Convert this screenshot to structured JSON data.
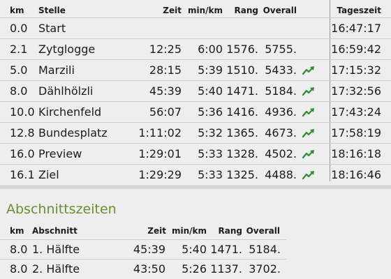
{
  "splits": {
    "headers": {
      "km": "km",
      "stelle": "Stelle",
      "zeit": "Zeit",
      "pace": "min/km",
      "rang": "Rang",
      "overall": "Overall",
      "tageszeit": "Tageszeit"
    },
    "rows": [
      {
        "km": "0.0",
        "name": "Start",
        "zeit": "",
        "pace": "",
        "rang": "",
        "overall": "",
        "trend": "",
        "tageszeit": "16:47:17"
      },
      {
        "km": "2.1",
        "name": "Zytglogge",
        "zeit": "12:25",
        "pace": "6:00",
        "rang": "1576.",
        "overall": "5755.",
        "trend": "",
        "tageszeit": "16:59:42"
      },
      {
        "km": "5.0",
        "name": "Marzili",
        "zeit": "28:15",
        "pace": "5:39",
        "rang": "1510.",
        "overall": "5433.",
        "trend": "trend-up-icon",
        "tageszeit": "17:15:32"
      },
      {
        "km": "8.0",
        "name": "Dählhölzli",
        "zeit": "45:39",
        "pace": "5:40",
        "rang": "1471.",
        "overall": "5184.",
        "trend": "trend-up-icon",
        "tageszeit": "17:32:56"
      },
      {
        "km": "10.0",
        "name": "Kirchenfeld",
        "zeit": "56:07",
        "pace": "5:36",
        "rang": "1416.",
        "overall": "4936.",
        "trend": "trend-up-icon",
        "tageszeit": "17:43:24"
      },
      {
        "km": "12.8",
        "name": "Bundesplatz",
        "zeit": "1:11:02",
        "pace": "5:32",
        "rang": "1365.",
        "overall": "4673.",
        "trend": "trend-up-icon",
        "tageszeit": "17:58:19"
      },
      {
        "km": "16.0",
        "name": "Preview",
        "zeit": "1:29:01",
        "pace": "5:33",
        "rang": "1328.",
        "overall": "4502.",
        "trend": "trend-up-icon",
        "tageszeit": "18:16:18"
      },
      {
        "km": "16.1",
        "name": "Ziel",
        "zeit": "1:29:29",
        "pace": "5:33",
        "rang": "1325.",
        "overall": "4488.",
        "trend": "trend-up-icon",
        "tageszeit": "18:16:46"
      }
    ],
    "trend_color": "#2e8b2e"
  },
  "sections": {
    "title": "Abschnittszeiten",
    "title_color": "#6a8f2e",
    "headers": {
      "km": "km",
      "abschnitt": "Abschnitt",
      "zeit": "Zeit",
      "pace": "min/km",
      "rang": "Rang",
      "overall": "Overall"
    },
    "rows": [
      {
        "km": "8.0",
        "name": "1. Hälfte",
        "zeit": "45:39",
        "pace": "5:40",
        "rang": "1471.",
        "overall": "5184."
      },
      {
        "km": "8.0",
        "name": "2. Hälfte",
        "zeit": "43:50",
        "pace": "5:26",
        "rang": "1137.",
        "overall": "3702."
      }
    ]
  }
}
